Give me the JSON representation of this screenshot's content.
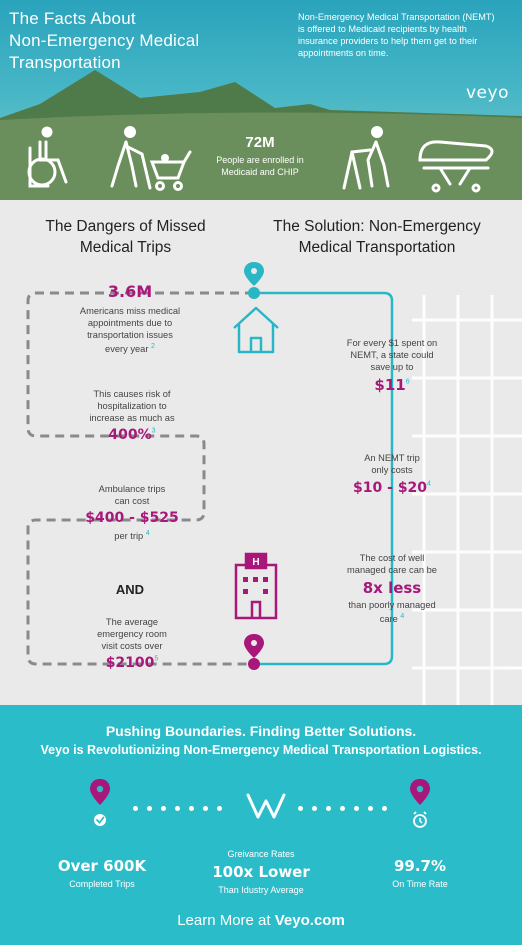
{
  "header": {
    "title_lines": [
      "The Facts About",
      "Non-Emergency Medical",
      "Transportation"
    ],
    "intro_lines": [
      "Non-Emergency Medical Transportation (NEMT)",
      "is offered to Medicaid recipients by health",
      "insurance providers to help them get to their",
      "appointments on time."
    ],
    "logo": "veyo",
    "enrolled_stat": "72M",
    "enrolled_text_lines": [
      "People are enrolled in",
      "Medicaid and CHIP"
    ]
  },
  "dangers": {
    "heading_lines": [
      "The Dangers of Missed",
      "Medical Trips"
    ],
    "miss_stat": "3.6M",
    "miss_text_lines": [
      "Americans miss medical",
      "appointments due to",
      "transportation issues",
      "every year"
    ],
    "miss_ref": "2",
    "risk_text_lines": [
      "This causes risk of",
      "hospitalization to",
      "increase as much as"
    ],
    "risk_stat": "400%",
    "risk_ref": "3",
    "ambulance_text_lines": [
      "Ambulance  trips",
      "can cost"
    ],
    "ambulance_stat": "$400 - $525",
    "ambulance_after": "per trip",
    "ambulance_ref": "4",
    "and_label": "AND",
    "er_text_lines": [
      "The average",
      "emergency room",
      "visit costs over"
    ],
    "er_stat": "$2100",
    "er_ref": "5"
  },
  "solution": {
    "heading_lines": [
      "The Solution: Non-Emergency",
      "Medical Transportation"
    ],
    "save_text_lines": [
      "For every $1 spent on",
      "NEMT, a state could",
      "save up to"
    ],
    "save_stat": "$11",
    "save_ref": "6",
    "trip_text_lines": [
      "An NEMT trip",
      "only costs"
    ],
    "trip_stat": "$10 - $20",
    "trip_ref": "4",
    "care_text_lines": [
      "The cost of well",
      "managed care can be"
    ],
    "care_stat": "8x less",
    "care_after_lines": [
      "than poorly managed",
      "care"
    ],
    "care_ref": "4",
    "hospital_letter": "H"
  },
  "footer": {
    "heading": "Pushing Boundaries. Finding Better Solutions.",
    "subheading": "Veyo is Revolutionizing Non-Emergency Medical Transportation Logistics.",
    "trips_stat": "Over 600K",
    "trips_label": "Completed Trips",
    "grievance_label": "Greivance Rates",
    "grievance_stat": "100x Lower",
    "grievance_sub": "Than Idustry Average",
    "ontime_stat": "99.7%",
    "ontime_label": "On Time Rate",
    "learn_prefix": "Learn More at ",
    "learn_site": "Veyo.com"
  },
  "colors": {
    "teal": "#29b7c6",
    "magenta": "#a8177a",
    "olive": "#5f8a5a",
    "mountain": "#4f7a4a",
    "gray_bg": "#eaeaea"
  }
}
